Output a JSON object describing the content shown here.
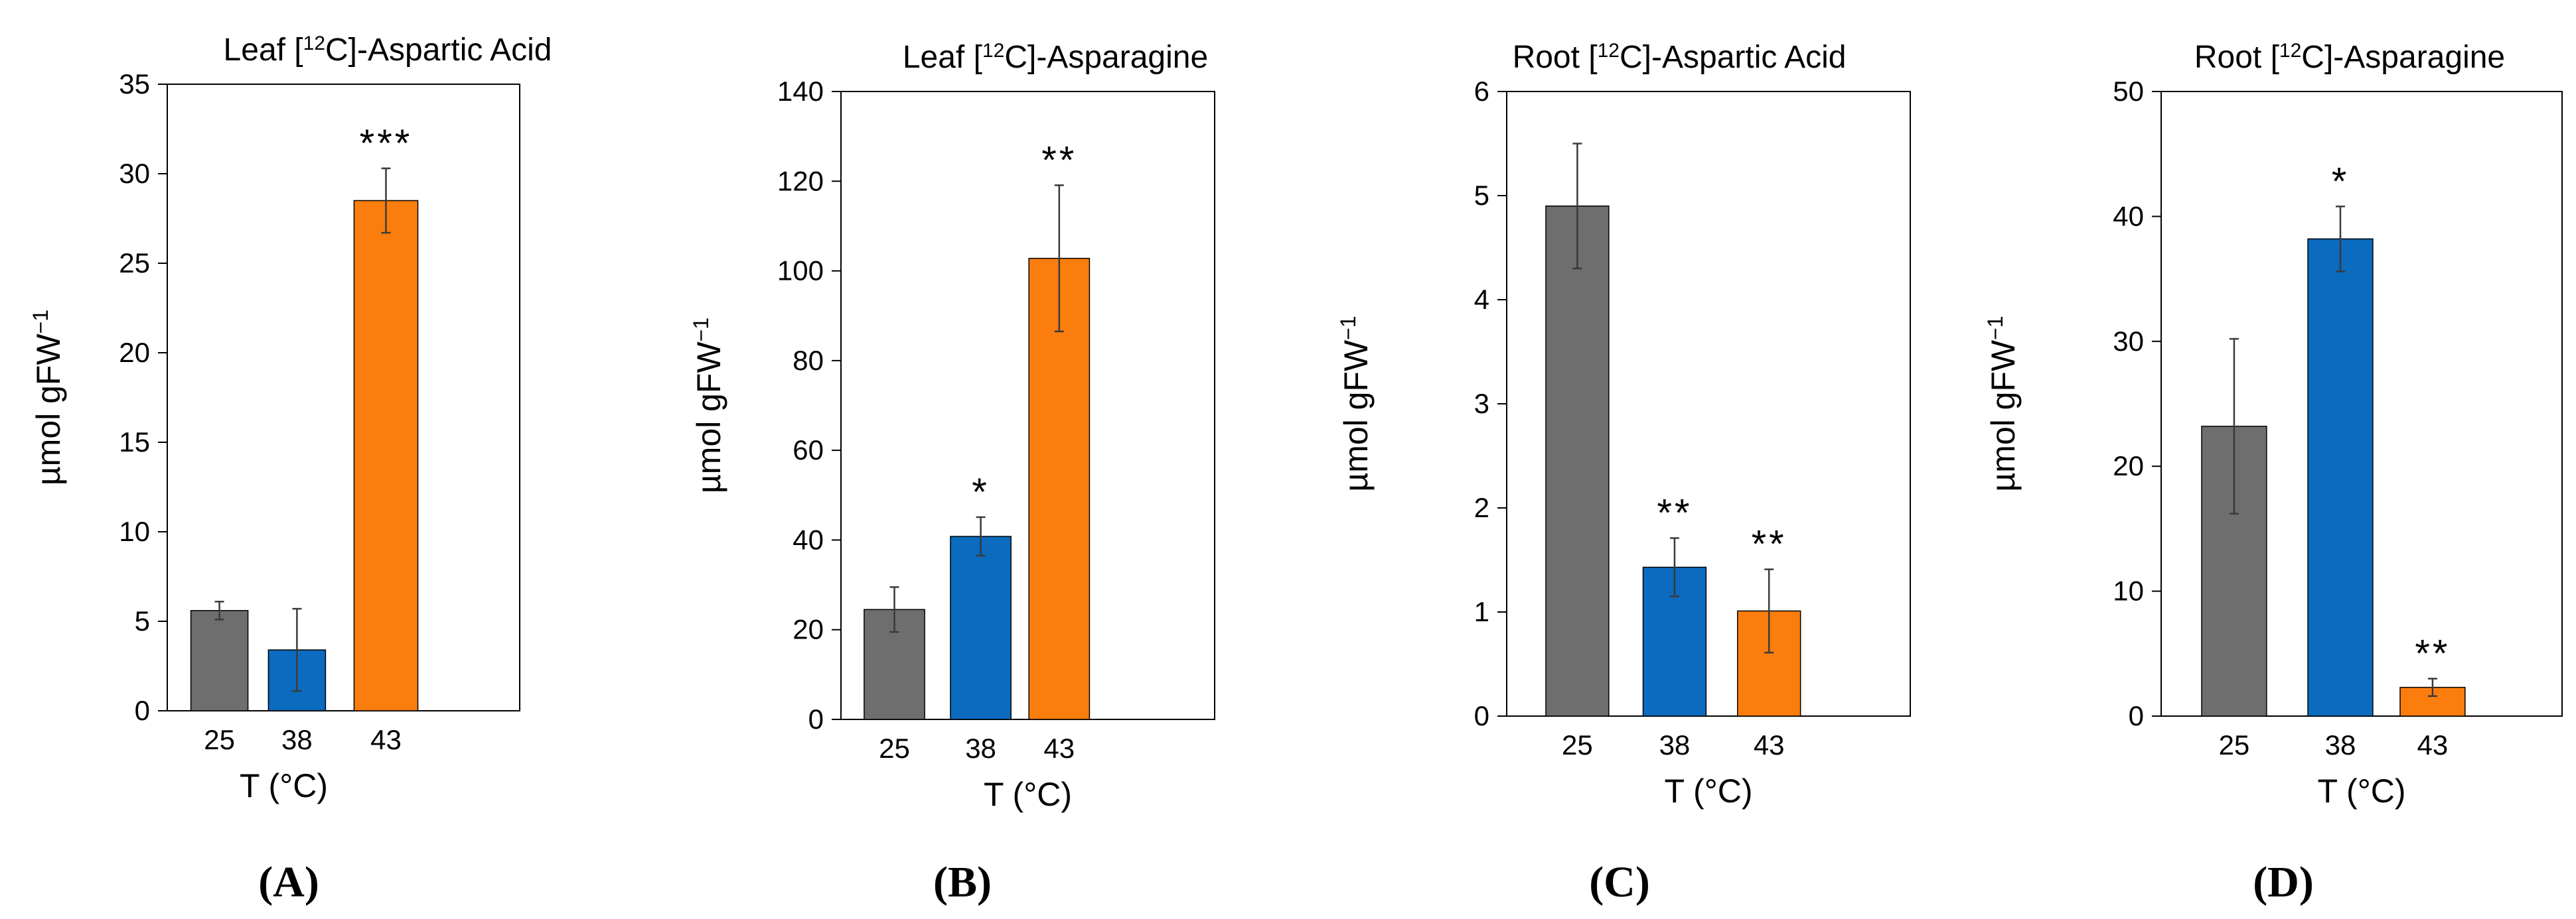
{
  "colors": {
    "25": "#6e6e6e",
    "38": "#0a6bbf",
    "43": "#fb7d0d",
    "axis": "#000000",
    "error": "#3a3a3a"
  },
  "chart_data": [
    {
      "panel": "A",
      "panel_label": "(A)",
      "type": "bar",
      "title": {
        "pre": "Leaf [",
        "sup": "12",
        "post": "C]-Aspartic Acid"
      },
      "xlabel": "T (°C)",
      "ylabel": {
        "main": "µmol gFW",
        "sup": "−1"
      },
      "categories": [
        "25",
        "38",
        "43"
      ],
      "values": [
        5.6,
        3.4,
        28.5
      ],
      "errors": [
        0.5,
        2.3,
        1.8
      ],
      "significance": [
        "",
        "",
        "***"
      ],
      "ylim": [
        0,
        35
      ],
      "yticks": [
        "0",
        "5",
        "10",
        "15",
        "20",
        "25",
        "30",
        "35"
      ]
    },
    {
      "panel": "B",
      "panel_label": "(B)",
      "type": "bar",
      "title": {
        "pre": "Leaf [",
        "sup": "12",
        "post": "C]-Asparagine"
      },
      "xlabel": "T (°C)",
      "ylabel": {
        "main": "µmol gFW",
        "sup": "−1"
      },
      "categories": [
        "25",
        "38",
        "43"
      ],
      "values": [
        24.5,
        40.8,
        102.8
      ],
      "errors": [
        5,
        4.3,
        16.3
      ],
      "significance": [
        "",
        "*",
        "**"
      ],
      "ylim": [
        0,
        140
      ],
      "yticks": [
        "0",
        "20",
        "40",
        "60",
        "80",
        "100",
        "120",
        "140"
      ]
    },
    {
      "panel": "C",
      "panel_label": "(C)",
      "type": "bar",
      "title": {
        "pre": "Root [",
        "sup": "12",
        "post": "C]-Aspartic Acid"
      },
      "xlabel": "T (°C)",
      "ylabel": {
        "main": "µmol gFW",
        "sup": "−1"
      },
      "categories": [
        "25",
        "38",
        "43"
      ],
      "values": [
        4.9,
        1.43,
        1.01
      ],
      "errors": [
        0.6,
        0.28,
        0.4
      ],
      "significance": [
        "",
        "**",
        "**"
      ],
      "ylim": [
        0,
        6
      ],
      "yticks": [
        "0",
        "1",
        "2",
        "3",
        "4",
        "5",
        "6"
      ]
    },
    {
      "panel": "D",
      "panel_label": "(D)",
      "type": "bar",
      "title": {
        "pre": "Root [",
        "sup": "12",
        "post": "C]-Asparagine"
      },
      "xlabel": "T (°C)",
      "ylabel": {
        "main": "µmol gFW",
        "sup": "−1"
      },
      "categories": [
        "25",
        "38",
        "43"
      ],
      "values": [
        23.2,
        38.2,
        2.3
      ],
      "errors": [
        7,
        2.6,
        0.7
      ],
      "significance": [
        "",
        "*",
        "**"
      ],
      "ylim": [
        0,
        50
      ],
      "yticks": [
        "0",
        "10",
        "20",
        "30",
        "40",
        "50"
      ]
    }
  ]
}
